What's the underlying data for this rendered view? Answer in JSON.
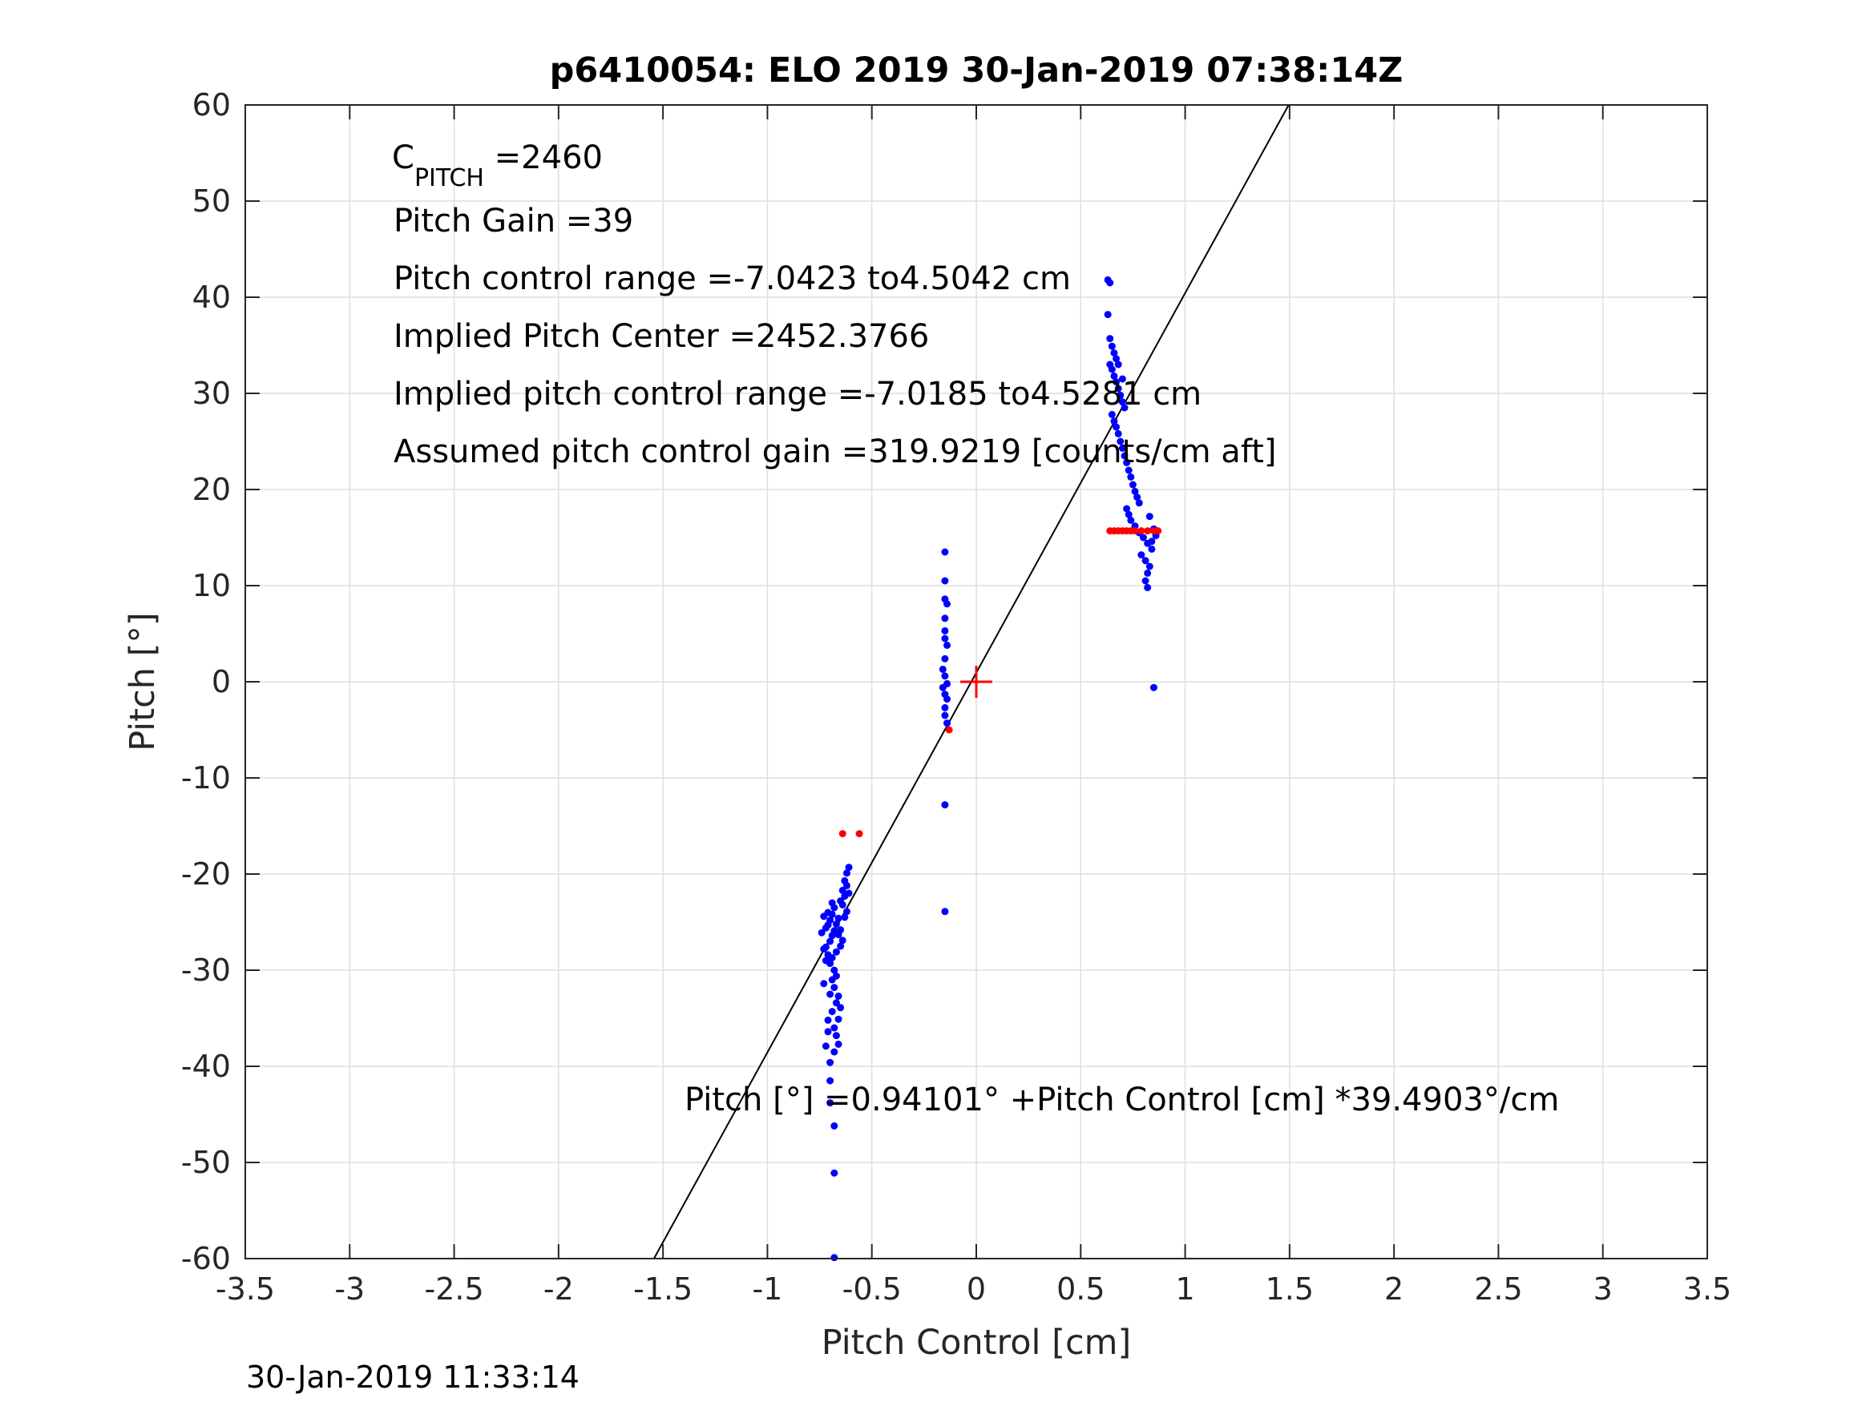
{
  "chart_data": {
    "type": "scatter",
    "title": "p6410054: ELO 2019 30-Jan-2019 07:38:14Z",
    "xlabel": "Pitch Control [cm]",
    "ylabel": "Pitch [°]",
    "xlim": [
      -3.5,
      3.5
    ],
    "ylim": [
      -60,
      60
    ],
    "grid": true,
    "xticks": [
      -3.5,
      -3,
      -2.5,
      -2,
      -1.5,
      -1,
      -0.5,
      0,
      0.5,
      1,
      1.5,
      2,
      2.5,
      3,
      3.5
    ],
    "xtick_labels": [
      "-3.5",
      "-3",
      "-2.5",
      "-2",
      "-1.5",
      "-1",
      "-0.5",
      "0",
      "0.5",
      "1",
      "1.5",
      "2",
      "2.5",
      "3",
      "3.5"
    ],
    "yticks": [
      -60,
      -50,
      -40,
      -30,
      -20,
      -10,
      0,
      10,
      20,
      30,
      40,
      50,
      60
    ],
    "ytick_labels": [
      "-60",
      "-50",
      "-40",
      "-30",
      "-20",
      "-10",
      "0",
      "10",
      "20",
      "30",
      "40",
      "50",
      "60"
    ],
    "annotations": {
      "c_pitch_main": "C",
      "c_pitch_sub": "PITCH",
      "c_pitch_value": " =2460",
      "pitch_gain": "Pitch Gain =39",
      "control_range": "Pitch control range =-7.0423 to4.5042 cm",
      "implied_center": "Implied Pitch Center =2452.3766",
      "implied_range": "Implied pitch control range =-7.0185 to4.5281 cm",
      "assumed_gain": "Assumed pitch control gain =319.9219 [counts/cm aft]",
      "fit_equation": "Pitch [°] =0.94101° +Pitch Control [cm] *39.4903°/cm"
    },
    "fit_line": {
      "intercept": 0.94101,
      "slope": 39.4903,
      "color": "#000000"
    },
    "center_marker": {
      "x": 0,
      "y": 0,
      "color": "#ff0000"
    },
    "series": [
      {
        "color": "#0000ff",
        "points": [
          [
            -0.68,
            -23.5
          ],
          [
            -0.69,
            -24.2
          ],
          [
            -0.7,
            -24.8
          ],
          [
            -0.71,
            -25.3
          ],
          [
            -0.68,
            -25.9
          ],
          [
            -0.69,
            -26.4
          ],
          [
            -0.7,
            -27.0
          ],
          [
            -0.72,
            -27.6
          ],
          [
            -0.67,
            -28.1
          ],
          [
            -0.69,
            -28.7
          ],
          [
            -0.7,
            -29.3
          ],
          [
            -0.68,
            -30.0
          ],
          [
            -0.71,
            -24.0
          ],
          [
            -0.66,
            -24.6
          ],
          [
            -0.67,
            -25.2
          ],
          [
            -0.65,
            -25.8
          ],
          [
            -0.66,
            -26.3
          ],
          [
            -0.64,
            -23.2
          ],
          [
            -0.65,
            -22.8
          ],
          [
            -0.63,
            -22.3
          ],
          [
            -0.64,
            -21.7
          ],
          [
            -0.62,
            -21.2
          ],
          [
            -0.63,
            -20.7
          ],
          [
            -0.62,
            -19.9
          ],
          [
            -0.61,
            -19.3
          ],
          [
            -0.62,
            -23.9
          ],
          [
            -0.63,
            -24.5
          ],
          [
            -0.61,
            -22.0
          ],
          [
            -0.64,
            -26.9
          ],
          [
            -0.65,
            -27.5
          ],
          [
            -0.69,
            -31.0
          ],
          [
            -0.68,
            -31.8
          ],
          [
            -0.7,
            -32.5
          ],
          [
            -0.67,
            -33.4
          ],
          [
            -0.69,
            -34.3
          ],
          [
            -0.66,
            -35.1
          ],
          [
            -0.68,
            -36.0
          ],
          [
            -0.67,
            -36.8
          ],
          [
            -0.66,
            -37.7
          ],
          [
            -0.68,
            -38.5
          ],
          [
            -0.71,
            -35.2
          ],
          [
            -0.71,
            -36.4
          ],
          [
            -0.72,
            -37.9
          ],
          [
            -0.7,
            -39.6
          ],
          [
            -0.73,
            -31.4
          ],
          [
            -0.74,
            -26.1
          ],
          [
            -0.73,
            -27.8
          ],
          [
            -0.72,
            -29.0
          ],
          [
            -0.67,
            -30.6
          ],
          [
            -0.69,
            -23.0
          ],
          [
            -0.7,
            -41.5
          ],
          [
            -0.7,
            -43.8
          ],
          [
            -0.68,
            -46.2
          ],
          [
            -0.68,
            -51.1
          ],
          [
            -0.68,
            -59.9
          ],
          [
            -0.66,
            -32.7
          ],
          [
            -0.65,
            -33.9
          ],
          [
            -0.71,
            -28.4
          ],
          [
            -0.72,
            -25.6
          ],
          [
            -0.73,
            -24.4
          ],
          [
            -0.15,
            13.5
          ],
          [
            -0.15,
            10.5
          ],
          [
            -0.15,
            8.6
          ],
          [
            -0.14,
            8.1
          ],
          [
            -0.15,
            6.6
          ],
          [
            -0.15,
            4.5
          ],
          [
            -0.14,
            3.8
          ],
          [
            -0.15,
            2.4
          ],
          [
            -0.16,
            1.3
          ],
          [
            -0.15,
            0.6
          ],
          [
            -0.14,
            -0.2
          ],
          [
            -0.16,
            -0.6
          ],
          [
            -0.15,
            -1.3
          ],
          [
            -0.14,
            -1.8
          ],
          [
            -0.15,
            -2.7
          ],
          [
            -0.15,
            -3.5
          ],
          [
            -0.14,
            -4.3
          ],
          [
            -0.15,
            -12.8
          ],
          [
            -0.15,
            -23.9
          ],
          [
            -0.15,
            5.3
          ],
          [
            0.63,
            41.8
          ],
          [
            0.64,
            41.5
          ],
          [
            0.63,
            38.2
          ],
          [
            0.64,
            35.7
          ],
          [
            0.65,
            34.9
          ],
          [
            0.66,
            34.2
          ],
          [
            0.67,
            33.6
          ],
          [
            0.68,
            33.0
          ],
          [
            0.65,
            32.5
          ],
          [
            0.66,
            31.8
          ],
          [
            0.67,
            31.2
          ],
          [
            0.68,
            30.5
          ],
          [
            0.69,
            29.8
          ],
          [
            0.7,
            29.1
          ],
          [
            0.71,
            28.5
          ],
          [
            0.65,
            27.8
          ],
          [
            0.66,
            27.1
          ],
          [
            0.67,
            26.5
          ],
          [
            0.68,
            25.8
          ],
          [
            0.69,
            25.0
          ],
          [
            0.7,
            24.3
          ],
          [
            0.71,
            23.5
          ],
          [
            0.72,
            22.8
          ],
          [
            0.73,
            22.0
          ],
          [
            0.74,
            21.3
          ],
          [
            0.75,
            20.5
          ],
          [
            0.76,
            19.8
          ],
          [
            0.77,
            19.2
          ],
          [
            0.78,
            18.6
          ],
          [
            0.72,
            18.0
          ],
          [
            0.73,
            17.4
          ],
          [
            0.74,
            16.8
          ],
          [
            0.76,
            16.2
          ],
          [
            0.78,
            15.5
          ],
          [
            0.8,
            15.0
          ],
          [
            0.82,
            14.4
          ],
          [
            0.84,
            13.8
          ],
          [
            0.79,
            13.2
          ],
          [
            0.81,
            12.6
          ],
          [
            0.83,
            12.0
          ],
          [
            0.82,
            11.3
          ],
          [
            0.81,
            10.5
          ],
          [
            0.82,
            9.8
          ],
          [
            0.85,
            15.9
          ],
          [
            0.86,
            15.2
          ],
          [
            0.84,
            14.6
          ],
          [
            0.83,
            17.2
          ],
          [
            0.85,
            -0.6
          ],
          [
            0.64,
            33.0
          ],
          [
            0.7,
            31.5
          ]
        ]
      },
      {
        "color": "#ff0000",
        "points": [
          [
            -0.64,
            -15.8
          ],
          [
            -0.56,
            -15.8
          ],
          [
            -0.13,
            -5.0
          ],
          [
            0.64,
            15.7
          ],
          [
            0.66,
            15.7
          ],
          [
            0.68,
            15.7
          ],
          [
            0.7,
            15.7
          ],
          [
            0.72,
            15.7
          ],
          [
            0.74,
            15.7
          ],
          [
            0.76,
            15.7
          ],
          [
            0.79,
            15.7
          ],
          [
            0.82,
            15.7
          ],
          [
            0.85,
            15.7
          ],
          [
            0.87,
            15.7
          ]
        ]
      }
    ]
  },
  "footer": {
    "timestamp": "30-Jan-2019 11:33:14"
  }
}
